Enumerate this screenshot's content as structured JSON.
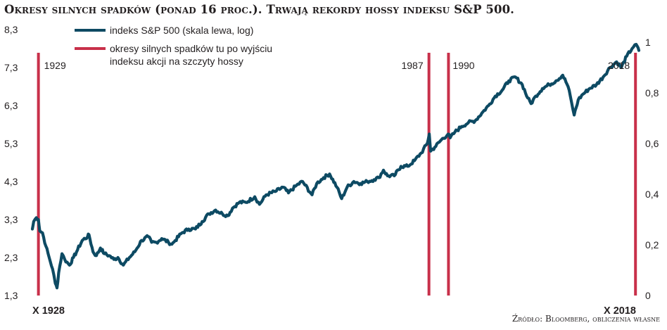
{
  "title": "Okresy silnych spadków (ponad 16 proc.). Trwają rekordy hossy indeksu S&P 500.",
  "source": "Źródło: Bloomberg, obliczenia własne",
  "colors": {
    "index_line": "#0d4a63",
    "periods": "#c8304a",
    "text": "#231f20"
  },
  "chart_data": {
    "type": "line",
    "x_start_label": "X 1928",
    "x_end_label": "X 2018",
    "xlim": [
      1928.8,
      2018.8
    ],
    "left_axis": {
      "label": "",
      "ylim": [
        1.3,
        8.3
      ],
      "ticks": [
        "8,3",
        "7,3",
        "6,3",
        "5,3",
        "4,3",
        "3,3",
        "2,3",
        "1,3"
      ]
    },
    "right_axis": {
      "label": "",
      "ylim": [
        0,
        1.05
      ],
      "ticks": [
        "1",
        "0,8",
        "0,6",
        "0,4",
        "0,2",
        "0"
      ]
    },
    "legend": [
      {
        "label": "indeks S&P 500 (skala lewa, log)",
        "color": "#0d4a63",
        "kind": "line"
      },
      {
        "label": "okresy silnych spadków tu po wyjściu\nindeksu akcji na szczyty hossy",
        "color": "#c8304a",
        "kind": "bar"
      }
    ],
    "legend_position": "top-left",
    "grid": false,
    "series": [
      {
        "name": "indeks S&P 500 (skala lewa, log)",
        "axis": "left",
        "x": [
          1928.8,
          1929.0,
          1929.4,
          1929.7,
          1929.9,
          1930.3,
          1930.8,
          1931.3,
          1931.8,
          1932.2,
          1932.45,
          1932.7,
          1933.2,
          1933.6,
          1934.3,
          1934.9,
          1935.5,
          1936.2,
          1937.0,
          1937.2,
          1937.8,
          1938.3,
          1938.9,
          1939.5,
          1940.2,
          1940.9,
          1941.5,
          1942.3,
          1943.2,
          1944.0,
          1945.0,
          1946.0,
          1946.5,
          1947.2,
          1948.0,
          1949.0,
          1949.5,
          1950.0,
          1951.0,
          1952.0,
          1953.0,
          1954.0,
          1955.0,
          1956.0,
          1957.0,
          1957.8,
          1958.5,
          1959.5,
          1960.5,
          1961.8,
          1962.5,
          1963.5,
          1965.0,
          1966.0,
          1966.8,
          1968.0,
          1968.9,
          1970.3,
          1971.0,
          1972.0,
          1972.9,
          1974.0,
          1974.7,
          1975.5,
          1976.5,
          1977.5,
          1978.5,
          1979.5,
          1980.2,
          1980.9,
          1981.5,
          1982.5,
          1983.5,
          1984.5,
          1985.5,
          1986.5,
          1987.4,
          1987.7,
          1987.9,
          1988.5,
          1989.5,
          1990.5,
          1990.8,
          1991.5,
          1992.5,
          1993.5,
          1994.5,
          1995.5,
          1996.5,
          1997.5,
          1998.5,
          1999.5,
          2000.5,
          2001.5,
          2002.3,
          2002.8,
          2003.5,
          2004.5,
          2005.5,
          2006.5,
          2007.5,
          2008.3,
          2008.8,
          2009.2,
          2009.8,
          2010.5,
          2011.5,
          2012.5,
          2013.5,
          2014.5,
          2015.5,
          2016.2,
          2017.0,
          2017.8,
          2018.2,
          2018.6,
          2018.8
        ],
        "values": [
          3.05,
          3.25,
          3.35,
          3.3,
          3.0,
          2.95,
          2.6,
          2.3,
          2.0,
          1.62,
          1.5,
          1.9,
          2.4,
          2.25,
          2.1,
          2.3,
          2.5,
          2.75,
          2.85,
          2.9,
          2.45,
          2.35,
          2.55,
          2.4,
          2.35,
          2.25,
          2.3,
          2.1,
          2.3,
          2.45,
          2.75,
          2.85,
          2.7,
          2.7,
          2.8,
          2.7,
          2.65,
          2.75,
          2.95,
          3.05,
          3.05,
          3.25,
          3.45,
          3.55,
          3.45,
          3.4,
          3.6,
          3.75,
          3.75,
          3.9,
          3.7,
          3.95,
          4.05,
          4.15,
          4.0,
          4.2,
          4.3,
          3.95,
          4.25,
          4.4,
          4.5,
          4.15,
          3.85,
          4.15,
          4.3,
          4.25,
          4.3,
          4.35,
          4.4,
          4.6,
          4.45,
          4.45,
          4.7,
          4.7,
          4.85,
          5.05,
          5.3,
          5.55,
          5.1,
          5.2,
          5.4,
          5.55,
          5.45,
          5.6,
          5.75,
          5.85,
          5.9,
          6.1,
          6.3,
          6.55,
          6.7,
          6.95,
          7.05,
          6.85,
          6.5,
          6.35,
          6.55,
          6.75,
          6.85,
          6.95,
          7.1,
          6.8,
          6.4,
          6.05,
          6.45,
          6.6,
          6.75,
          6.85,
          7.05,
          7.3,
          7.45,
          7.3,
          7.6,
          7.8,
          7.9,
          7.85,
          7.75
        ]
      }
    ],
    "periods": [
      {
        "label": "1929",
        "x": 1929.7
      },
      {
        "label": "1987",
        "x": 1987.65
      },
      {
        "label": "1990",
        "x": 1990.55
      },
      {
        "label": "2018",
        "x": 2018.3
      }
    ]
  }
}
